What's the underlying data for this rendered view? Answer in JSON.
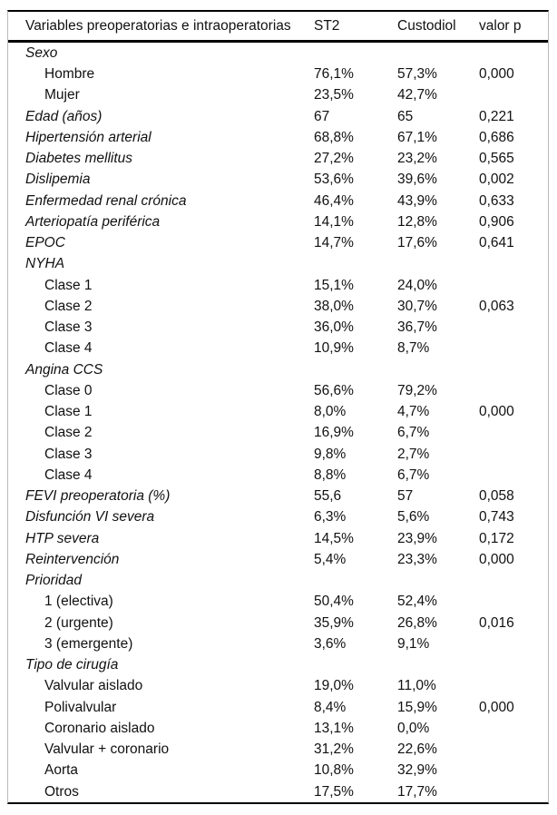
{
  "table": {
    "columns": {
      "variable": "Variables preoperatorias e intraoperatorias",
      "st2": "ST2",
      "custodiol": "Custodiol",
      "p": "valor p"
    },
    "rows": [
      {
        "label": "Sexo",
        "italic": true,
        "indent": 0,
        "st2": "",
        "custodiol": "",
        "p": ""
      },
      {
        "label": "Hombre",
        "italic": false,
        "indent": 1,
        "st2": "76,1%",
        "custodiol": "57,3%",
        "p": "0,000"
      },
      {
        "label": "Mujer",
        "italic": false,
        "indent": 1,
        "st2": "23,5%",
        "custodiol": "42,7%",
        "p": ""
      },
      {
        "label": "Edad (años)",
        "italic": true,
        "indent": 0,
        "st2": "67",
        "custodiol": "65",
        "p": "0,221"
      },
      {
        "label": "Hipertensión arterial",
        "italic": true,
        "indent": 0,
        "st2": "68,8%",
        "custodiol": "67,1%",
        "p": "0,686"
      },
      {
        "label": "Diabetes mellitus",
        "italic": true,
        "indent": 0,
        "st2": "27,2%",
        "custodiol": "23,2%",
        "p": "0,565"
      },
      {
        "label": "Dislipemia",
        "italic": true,
        "indent": 0,
        "st2": "53,6%",
        "custodiol": "39,6%",
        "p": "0,002"
      },
      {
        "label": "Enfermedad renal crónica",
        "italic": true,
        "indent": 0,
        "st2": "46,4%",
        "custodiol": "43,9%",
        "p": "0,633"
      },
      {
        "label": "Arteriopatía periférica",
        "italic": true,
        "indent": 0,
        "st2": "14,1%",
        "custodiol": "12,8%",
        "p": "0,906"
      },
      {
        "label": "EPOC",
        "italic": true,
        "indent": 0,
        "st2": "14,7%",
        "custodiol": "17,6%",
        "p": "0,641"
      },
      {
        "label": "NYHA",
        "italic": true,
        "indent": 0,
        "st2": "",
        "custodiol": "",
        "p": ""
      },
      {
        "label": "Clase 1",
        "italic": false,
        "indent": 1,
        "st2": "15,1%",
        "custodiol": "24,0%",
        "p": ""
      },
      {
        "label": "Clase 2",
        "italic": false,
        "indent": 1,
        "st2": "38,0%",
        "custodiol": "30,7%",
        "p": "0,063"
      },
      {
        "label": "Clase 3",
        "italic": false,
        "indent": 1,
        "st2": "36,0%",
        "custodiol": "36,7%",
        "p": ""
      },
      {
        "label": "Clase 4",
        "italic": false,
        "indent": 1,
        "st2": "10,9%",
        "custodiol": "8,7%",
        "p": ""
      },
      {
        "label": "Angina CCS",
        "italic": true,
        "indent": 0,
        "st2": "",
        "custodiol": "",
        "p": ""
      },
      {
        "label": "Clase 0",
        "italic": false,
        "indent": 1,
        "st2": "56,6%",
        "custodiol": "79,2%",
        "p": ""
      },
      {
        "label": "Clase 1",
        "italic": false,
        "indent": 1,
        "st2": "8,0%",
        "custodiol": "4,7%",
        "p": "0,000"
      },
      {
        "label": "Clase 2",
        "italic": false,
        "indent": 1,
        "st2": "16,9%",
        "custodiol": "6,7%",
        "p": ""
      },
      {
        "label": "Clase 3",
        "italic": false,
        "indent": 1,
        "st2": "9,8%",
        "custodiol": "2,7%",
        "p": ""
      },
      {
        "label": "Clase 4",
        "italic": false,
        "indent": 1,
        "st2": "8,8%",
        "custodiol": "6,7%",
        "p": ""
      },
      {
        "label": "FEVI preoperatoria (%)",
        "italic": true,
        "indent": 0,
        "st2": "55,6",
        "custodiol": "57",
        "p": "0,058"
      },
      {
        "label": "Disfunción VI severa",
        "italic": true,
        "indent": 0,
        "st2": "6,3%",
        "custodiol": "5,6%",
        "p": "0,743"
      },
      {
        "label": "HTP severa",
        "italic": true,
        "indent": 0,
        "st2": "14,5%",
        "custodiol": "23,9%",
        "p": "0,172"
      },
      {
        "label": "Reintervención",
        "italic": true,
        "indent": 0,
        "st2": "5,4%",
        "custodiol": "23,3%",
        "p": "0,000"
      },
      {
        "label": "Prioridad",
        "italic": true,
        "indent": 0,
        "st2": "",
        "custodiol": "",
        "p": ""
      },
      {
        "label": "1 (electiva)",
        "italic": false,
        "indent": 1,
        "st2": "50,4%",
        "custodiol": "52,4%",
        "p": ""
      },
      {
        "label": "2 (urgente)",
        "italic": false,
        "indent": 1,
        "st2": "35,9%",
        "custodiol": "26,8%",
        "p": "0,016"
      },
      {
        "label": "3 (emergente)",
        "italic": false,
        "indent": 1,
        "st2": "3,6%",
        "custodiol": "9,1%",
        "p": ""
      },
      {
        "label": "Tipo de cirugía",
        "italic": true,
        "indent": 0,
        "st2": "",
        "custodiol": "",
        "p": ""
      },
      {
        "label": "Valvular aislado",
        "italic": false,
        "indent": 1,
        "st2": "19,0%",
        "custodiol": "11,0%",
        "p": ""
      },
      {
        "label": "Polivalvular",
        "italic": false,
        "indent": 1,
        "st2": "8,4%",
        "custodiol": "15,9%",
        "p": "0,000"
      },
      {
        "label": "Coronario aislado",
        "italic": false,
        "indent": 1,
        "st2": "13,1%",
        "custodiol": "0,0%",
        "p": ""
      },
      {
        "label": "Valvular + coronario",
        "italic": false,
        "indent": 1,
        "st2": "31,2%",
        "custodiol": "22,6%",
        "p": ""
      },
      {
        "label": "Aorta",
        "italic": false,
        "indent": 1,
        "st2": "10,8%",
        "custodiol": "32,9%",
        "p": ""
      },
      {
        "label": "Otros",
        "italic": false,
        "indent": 1,
        "st2": "17,5%",
        "custodiol": "17,7%",
        "p": ""
      }
    ]
  },
  "colors": {
    "text": "#111111",
    "rule": "#000000",
    "side_border": "#b9b9b9",
    "background": "#ffffff"
  }
}
